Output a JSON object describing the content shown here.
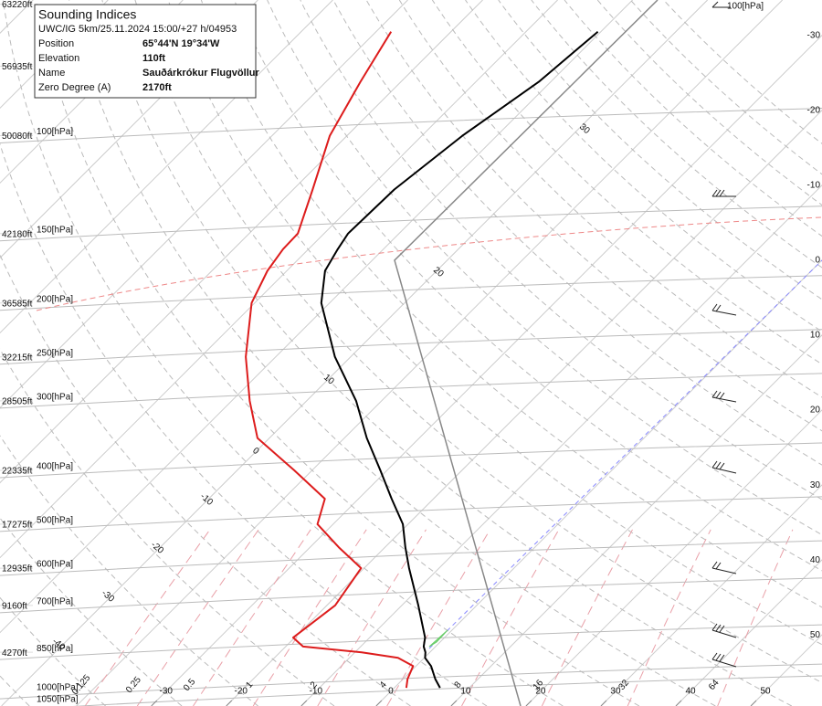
{
  "chart_data": {
    "type": "skewt",
    "info_box": {
      "title": "Sounding Indices",
      "subtitle": "UWC/IG 5km/25.11.2024 15:00/+27 h/04953",
      "rows": [
        [
          "Position",
          "65°44'N 19°34'W"
        ],
        [
          "Elevation",
          "110ft"
        ],
        [
          "Name",
          "Sauðárkrókur Flugvöllur"
        ],
        [
          "Zero Degree (A)",
          "2170ft"
        ]
      ]
    },
    "ylim": [
      1062,
      57
    ],
    "xlim": [
      -50.2,
      59.5
    ],
    "log_y": true,
    "pressure": [
      985,
      950,
      900,
      870,
      850,
      830,
      800,
      700,
      600,
      550,
      500,
      450,
      400,
      350,
      300,
      250,
      200,
      175,
      160,
      150,
      125,
      100,
      80,
      65
    ],
    "series": [
      {
        "color": "#000000",
        "values": [
          6.1,
          4.3,
          2.0,
          0.1,
          -0.6,
          -1.6,
          -2.6,
          -7.8,
          -14.0,
          -17.3,
          -20.7,
          -25.6,
          -30.9,
          -37.0,
          -43.4,
          -52.1,
          -61.1,
          -64.9,
          -66.1,
          -66.8,
          -66.5,
          -64.6,
          -61.6,
          -60.4
        ]
      },
      {
        "color": "#dd1c1c",
        "values": [
          1.6,
          0.6,
          -0.4,
          -3.5,
          -9.1,
          -17.7,
          -20.2,
          -18.9,
          -20.4,
          -26.2,
          -32.1,
          -34.5,
          -42.4,
          -51.6,
          -57.6,
          -64.0,
          -70.4,
          -72.6,
          -73.4,
          -73.5,
          -77.4,
          -82.3,
          -85.4,
          -88.0
        ]
      }
    ],
    "yticks": [
      {
        "value": 1050,
        "label": "1050[hPa]"
      },
      {
        "value": 1000,
        "label": "1000[hPa]"
      },
      {
        "value": 850,
        "label": "850[hPa]"
      },
      {
        "value": 700,
        "label": "700[hPa]"
      },
      {
        "value": 600,
        "label": "600[hPa]"
      },
      {
        "value": 500,
        "label": "500[hPa]"
      },
      {
        "value": 400,
        "label": "400[hPa]"
      },
      {
        "value": 300,
        "label": "300[hPa]"
      },
      {
        "value": 250,
        "label": "250[hPa]"
      },
      {
        "value": 200,
        "label": "200[hPa]"
      },
      {
        "value": 150,
        "label": "150[hPa]"
      },
      {
        "value": 100,
        "label": "100[hPa]"
      }
    ],
    "altitude_ticks": [
      {
        "value": 850,
        "label": "4270ft"
      },
      {
        "value": 700,
        "label": "9160ft"
      },
      {
        "value": 600,
        "label": "12935ft"
      },
      {
        "value": 500,
        "label": "17275ft"
      },
      {
        "value": 400,
        "label": "22335ft"
      },
      {
        "value": 300,
        "label": "28505ft"
      },
      {
        "value": 250,
        "label": "32215ft"
      },
      {
        "value": 200,
        "label": "36585ft"
      },
      {
        "value": 150,
        "label": "42180ft"
      },
      {
        "value": 100,
        "label": "50080ft"
      },
      {
        "value": 75,
        "label": "56935ft"
      },
      {
        "value": 58,
        "label": "63220ft"
      }
    ],
    "xticks": [
      -30,
      -20,
      -10,
      0,
      10,
      20,
      30,
      40,
      50
    ],
    "mixing_ratio": [
      0.125,
      0.25,
      0.5,
      1,
      2,
      4,
      8,
      16,
      32,
      64
    ],
    "diagonal_labels": [
      30,
      20,
      10,
      0,
      -10,
      -20,
      -30,
      -40
    ],
    "right_labels": [
      -30,
      -20,
      -10,
      0,
      10,
      20,
      30,
      40,
      50
    ],
    "wind_label": "100[hPa]"
  }
}
